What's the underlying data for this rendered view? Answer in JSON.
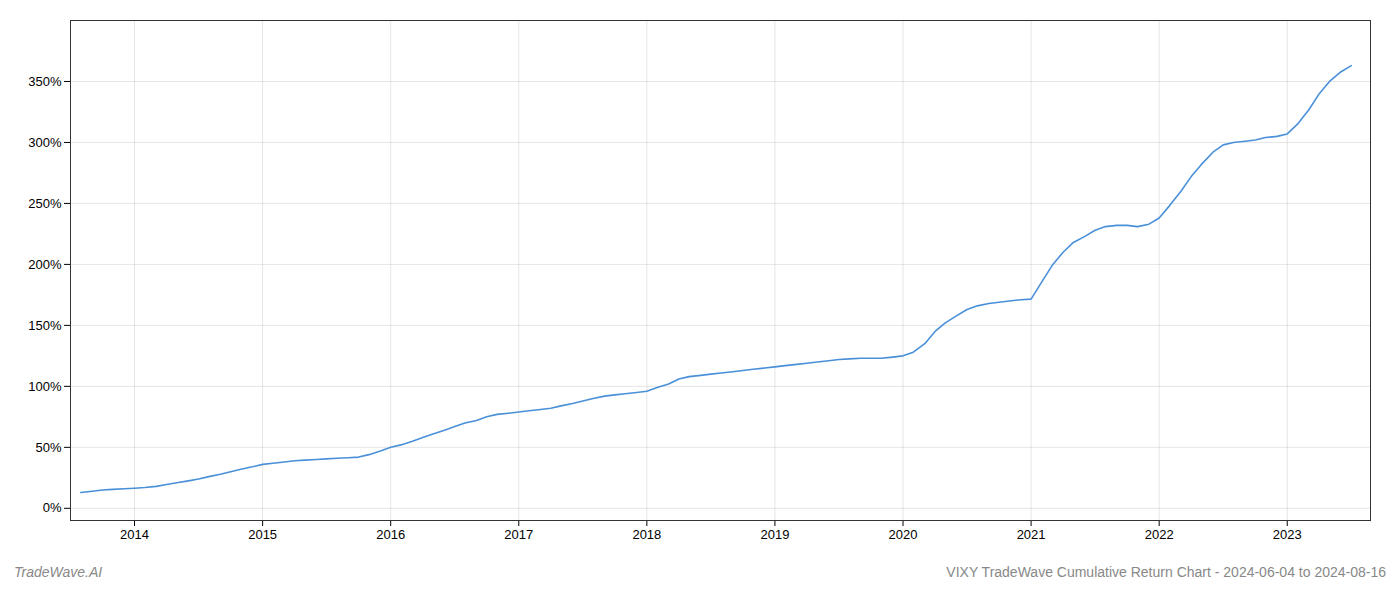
{
  "chart_data": {
    "type": "line",
    "title": "VIXY TradeWave Cumulative Return Chart - 2024-06-04 to 2024-08-16",
    "annotations": [
      "TradeWave.AI"
    ],
    "color": "#4a90d9",
    "grid": true,
    "x": [
      2013.58,
      2013.67,
      2013.75,
      2013.83,
      2013.92,
      2014.0,
      2014.08,
      2014.17,
      2014.25,
      2014.33,
      2014.42,
      2014.5,
      2014.58,
      2014.67,
      2014.75,
      2014.83,
      2014.92,
      2015.0,
      2015.08,
      2015.17,
      2015.25,
      2015.33,
      2015.42,
      2015.5,
      2015.58,
      2015.67,
      2015.75,
      2015.83,
      2015.92,
      2016.0,
      2016.08,
      2016.17,
      2016.25,
      2016.33,
      2016.42,
      2016.5,
      2016.58,
      2016.67,
      2016.75,
      2016.83,
      2016.92,
      2017.0,
      2017.08,
      2017.17,
      2017.25,
      2017.33,
      2017.42,
      2017.5,
      2017.58,
      2017.67,
      2017.75,
      2017.83,
      2017.92,
      2018.0,
      2018.08,
      2018.17,
      2018.25,
      2018.33,
      2018.42,
      2018.5,
      2018.58,
      2018.67,
      2018.75,
      2018.83,
      2018.92,
      2019.0,
      2019.08,
      2019.17,
      2019.25,
      2019.33,
      2019.42,
      2019.5,
      2019.58,
      2019.67,
      2019.75,
      2019.83,
      2019.92,
      2020.0,
      2020.08,
      2020.17,
      2020.25,
      2020.33,
      2020.42,
      2020.5,
      2020.58,
      2020.67,
      2020.75,
      2020.83,
      2020.92,
      2021.0,
      2021.08,
      2021.17,
      2021.25,
      2021.33,
      2021.42,
      2021.5,
      2021.58,
      2021.67,
      2021.75,
      2021.83,
      2021.92,
      2022.0,
      2022.08,
      2022.17,
      2022.25,
      2022.33,
      2022.42,
      2022.5,
      2022.58,
      2022.67,
      2022.75,
      2022.83,
      2022.92,
      2023.0,
      2023.08,
      2023.17,
      2023.25,
      2023.33,
      2023.42,
      2023.5
    ],
    "values": [
      13,
      14,
      15,
      15.5,
      16,
      16.5,
      17,
      18,
      19.5,
      21,
      22.5,
      24,
      26,
      28,
      30,
      32,
      34,
      36,
      37,
      38,
      39,
      39.5,
      40,
      40.5,
      41,
      41.5,
      42,
      44,
      47,
      50,
      52,
      55,
      58,
      61,
      64,
      67,
      70,
      72,
      75,
      77,
      78,
      79,
      80,
      81,
      82,
      84,
      86,
      88,
      90,
      92,
      93,
      94,
      95,
      96,
      99,
      102,
      106,
      108,
      109,
      110,
      111,
      112,
      113,
      114,
      115,
      116,
      117,
      118,
      119,
      120,
      121,
      122,
      122.5,
      123,
      123,
      123,
      124,
      125,
      128,
      135,
      145,
      152,
      158,
      163,
      166,
      168,
      169,
      170,
      171,
      171.5,
      185,
      200,
      210,
      218,
      223,
      228,
      231,
      232,
      232,
      231,
      233,
      238,
      248,
      260,
      272,
      282,
      292,
      298,
      300,
      301,
      302,
      304,
      305,
      307,
      315,
      327,
      340,
      350,
      358,
      363
    ],
    "xlim": [
      2013.5,
      2023.65
    ],
    "xticks": [
      2014,
      2015,
      2016,
      2017,
      2018,
      2019,
      2020,
      2021,
      2022,
      2023
    ],
    "ylim": [
      -10,
      400
    ],
    "yticks": [
      {
        "value": 0,
        "label": "0%"
      },
      {
        "value": 50,
        "label": "50%"
      },
      {
        "value": 100,
        "label": "100%"
      },
      {
        "value": 150,
        "label": "150%"
      },
      {
        "value": 200,
        "label": "200%"
      },
      {
        "value": 250,
        "label": "250%"
      },
      {
        "value": 300,
        "label": "300%"
      },
      {
        "value": 350,
        "label": "350%"
      }
    ]
  }
}
